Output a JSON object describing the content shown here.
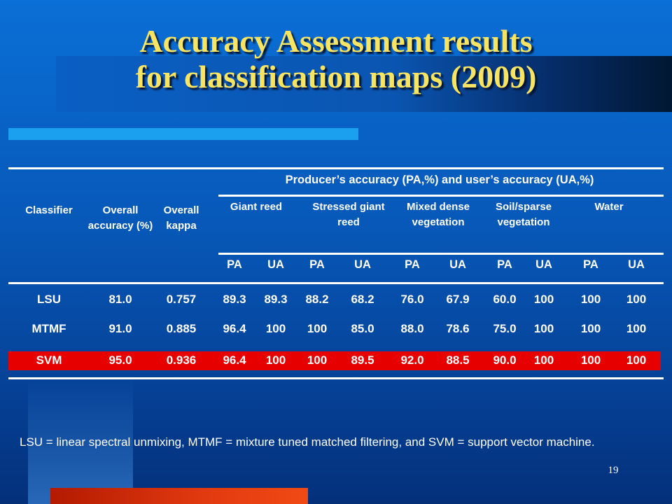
{
  "slide": {
    "title_line1": "Accuracy Assessment results",
    "title_line2": "for classification maps (2009)",
    "page_number": "19"
  },
  "table": {
    "col_classifier": "Classifier",
    "col_overall_accuracy": "Overall accuracy (%)",
    "col_overall_kappa": "Overall kappa",
    "group_header": "Producer’s accuracy (PA,%) and user’s accuracy (UA,%)",
    "classes": [
      "Giant reed",
      "Stressed giant reed",
      "Mixed dense vegetation",
      "Soil/sparse vegetation",
      "Water"
    ],
    "sub_headers": [
      "PA",
      "UA",
      "PA",
      "UA",
      "PA",
      "UA",
      "PA",
      "UA",
      "PA",
      "UA"
    ],
    "rows": [
      {
        "classifier": "LSU",
        "overall_accuracy": "81.0",
        "overall_kappa": "0.757",
        "values": [
          "89.3",
          "89.3",
          "88.2",
          "68.2",
          "76.0",
          "67.9",
          "60.0",
          "100",
          "100",
          "100"
        ]
      },
      {
        "classifier": "MTMF",
        "overall_accuracy": "91.0",
        "overall_kappa": "0.885",
        "values": [
          "96.4",
          "100",
          "100",
          "85.0",
          "88.0",
          "78.6",
          "75.0",
          "100",
          "100",
          "100"
        ]
      },
      {
        "classifier": "SVM",
        "overall_accuracy": "95.0",
        "overall_kappa": "0.936",
        "values": [
          "96.4",
          "100",
          "100",
          "89.5",
          "92.0",
          "88.5",
          "90.0",
          "100",
          "100",
          "100"
        ]
      }
    ],
    "highlight_color": "#e60000"
  },
  "footnote": "LSU = linear spectral unmixing, MTMF = mixture tuned matched filtering, and SVM = support vector machine."
}
